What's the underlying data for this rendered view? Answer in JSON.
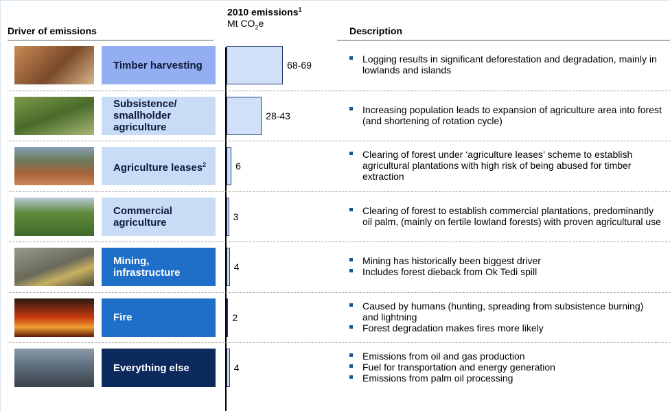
{
  "header": {
    "driver": "Driver of emissions",
    "emissions": {
      "title": "2010 emissions",
      "footnote": "1",
      "unit": [
        "Mt CO",
        "2",
        "e"
      ]
    },
    "description": "Description"
  },
  "rows": [
    {
      "label": "Timber harvesting",
      "emissions": {
        "range": [
          68,
          69
        ],
        "label": "68-69"
      },
      "bullets": [
        "Logging results in significant deforestation and degradation, mainly in lowlands and islands"
      ]
    },
    {
      "label": "Subsistence/ smallholder agriculture",
      "emissions": {
        "range": [
          28,
          43
        ],
        "label": "28-43"
      },
      "bullets": [
        "Increasing population leads to expansion of agriculture area into forest (and shortening of rotation cycle)"
      ]
    },
    {
      "label": "Agriculture leases",
      "footnote": "2",
      "emissions": 6,
      "bullets": [
        "Clearing of forest under ‘agriculture leases’ scheme to establish agricultural plantations with high risk of being abused for timber extraction"
      ]
    },
    {
      "label": "Commercial agriculture",
      "emissions": 3,
      "bullets": [
        "Clearing of forest to establish commercial plantations, predominantly oil palm, (mainly on fertile lowland forests) with proven agricultural use"
      ]
    },
    {
      "label": "Mining, infrastructure",
      "emissions": 4,
      "bullets": [
        "Mining has historically been biggest driver",
        "Includes forest dieback from Ok Tedi spill"
      ]
    },
    {
      "label": "Fire",
      "emissions": 2,
      "bullets": [
        "Caused by humans (hunting, spreading from subsistence burning) and lightning",
        "Forest degradation makes fires more likely"
      ]
    },
    {
      "label": "Everything else",
      "emissions": 4,
      "bullets": [
        "Emissions from oil and gas production",
        "Fuel for transportation and energy generation",
        "Emissions from palm oil processing"
      ]
    }
  ]
}
